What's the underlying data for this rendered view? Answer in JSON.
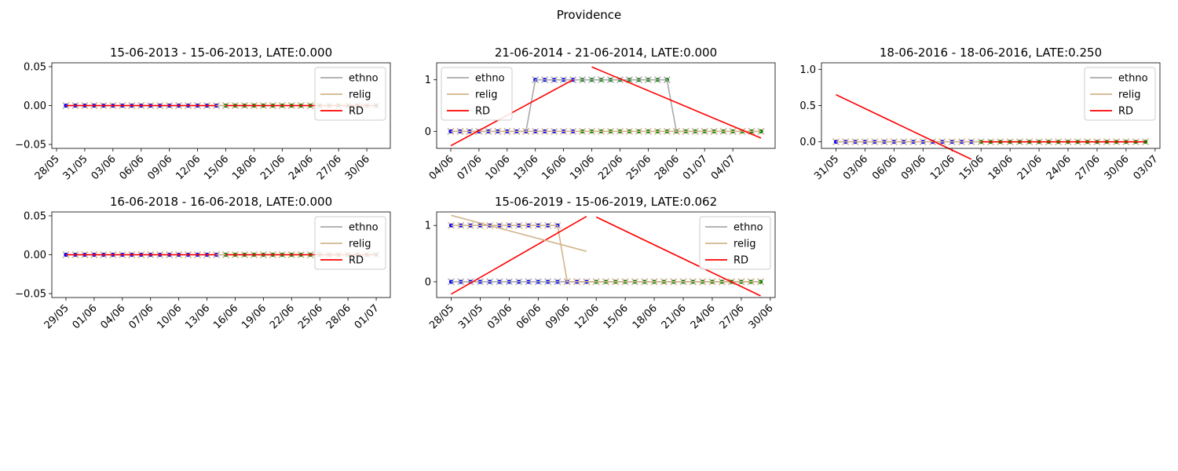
{
  "figure": {
    "suptitle": "Providence"
  },
  "legend_labels": [
    "ethno",
    "relig",
    "RD"
  ],
  "colors": {
    "ethno": "#a9a9a9",
    "relig": "#d2b48c",
    "rd": "#ff0000",
    "left_dots": "#0000ff",
    "right_dots": "#008000"
  },
  "chart_data": [
    {
      "type": "scatter",
      "title": "15-06-2013 - 15-06-2013, LATE:0.000",
      "x_ticks": [
        "28/05",
        "31/05",
        "03/06",
        "06/06",
        "09/06",
        "12/06",
        "15/06",
        "18/06",
        "21/06",
        "24/06",
        "27/06",
        "30/06"
      ],
      "y_ticks": [
        "0.05",
        "0.00",
        "−0.05"
      ],
      "ylim": [
        -0.055,
        0.055
      ],
      "legend": "upper right",
      "x_dates": [
        "2013-05-29",
        "2013-07-01"
      ],
      "series": [
        {
          "name": "ethno",
          "points": [
            [
              "2013-05-29",
              0
            ],
            [
              "2013-07-01",
              0
            ]
          ]
        },
        {
          "name": "relig",
          "points": [
            [
              "2013-05-29",
              0
            ],
            [
              "2013-07-01",
              0
            ]
          ]
        },
        {
          "name": "RD",
          "segments": [
            [
              [
                "2013-05-29",
                0
              ],
              [
                "2013-06-14",
                0
              ]
            ],
            [
              [
                "2013-06-15",
                0
              ],
              [
                "2013-07-01",
                0
              ]
            ]
          ]
        }
      ]
    },
    {
      "type": "scatter",
      "title": "21-06-2014 - 21-06-2014, LATE:0.000",
      "x_ticks": [
        "04/06",
        "07/06",
        "10/06",
        "13/06",
        "16/06",
        "19/06",
        "22/06",
        "25/06",
        "28/06",
        "01/07",
        "04/07"
      ],
      "y_ticks": [
        "1",
        "0"
      ],
      "ylim": [
        -0.33,
        1.33
      ],
      "legend": "upper left",
      "x_dates": [
        "2014-06-04",
        "2014-07-07"
      ],
      "series": [
        {
          "name": "ethno",
          "points": [
            [
              "2014-06-04",
              0
            ],
            [
              "2014-06-12",
              0
            ],
            [
              "2014-06-13",
              1
            ],
            [
              "2014-06-17",
              1
            ],
            [
              "2014-06-19",
              1
            ],
            [
              "2014-06-27",
              1
            ],
            [
              "2014-06-28",
              0
            ],
            [
              "2014-07-07",
              0
            ]
          ]
        },
        {
          "name": "relig",
          "points": [
            [
              "2014-06-04",
              0
            ],
            [
              "2014-07-07",
              0
            ]
          ]
        },
        {
          "name": "RD",
          "segments": [
            [
              [
                "2014-06-04",
                -0.28
              ],
              [
                "2014-06-17",
                1.0
              ]
            ],
            [
              [
                "2014-06-19",
                1.25
              ],
              [
                "2014-07-07",
                -0.13
              ]
            ]
          ]
        }
      ]
    },
    {
      "type": "scatter",
      "title": "18-06-2016 - 18-06-2016, LATE:0.250",
      "x_ticks": [
        "31/05",
        "03/06",
        "06/06",
        "09/06",
        "12/06",
        "15/06",
        "18/06",
        "21/06",
        "24/06",
        "27/06",
        "30/06",
        "03/07"
      ],
      "y_ticks": [
        "1.0",
        "0.5",
        "0.0"
      ],
      "ylim": [
        -0.09,
        1.09
      ],
      "legend": "upper right",
      "x_dates": [
        "2016-05-31",
        "2016-07-02"
      ],
      "series": [
        {
          "name": "ethno",
          "points": [
            [
              "2016-05-31",
              0
            ],
            [
              "2016-07-02",
              0
            ]
          ]
        },
        {
          "name": "relig",
          "points": [
            [
              "2016-05-31",
              0
            ],
            [
              "2016-07-02",
              0
            ]
          ]
        },
        {
          "name": "RD",
          "segments": [
            [
              [
                "2016-05-31",
                0.65
              ],
              [
                "2016-06-14",
                -0.24
              ]
            ],
            [
              [
                "2016-06-15",
                0
              ],
              [
                "2016-07-02",
                0
              ]
            ]
          ]
        }
      ]
    },
    {
      "type": "scatter",
      "title": "16-06-2018 - 16-06-2018, LATE:0.000",
      "x_ticks": [
        "29/05",
        "01/06",
        "04/06",
        "07/06",
        "10/06",
        "13/06",
        "16/06",
        "19/06",
        "22/06",
        "25/06",
        "28/06",
        "01/07"
      ],
      "y_ticks": [
        "0.05",
        "0.00",
        "−0.05"
      ],
      "ylim": [
        -0.055,
        0.055
      ],
      "legend": "upper right",
      "x_dates": [
        "2018-05-29",
        "2018-07-01"
      ],
      "series": [
        {
          "name": "ethno",
          "points": [
            [
              "2018-05-29",
              0
            ],
            [
              "2018-07-01",
              0
            ]
          ]
        },
        {
          "name": "relig",
          "points": [
            [
              "2018-05-29",
              0
            ],
            [
              "2018-07-01",
              0
            ]
          ]
        },
        {
          "name": "RD",
          "segments": [
            [
              [
                "2018-05-29",
                0
              ],
              [
                "2018-06-14",
                0
              ]
            ],
            [
              [
                "2018-06-15",
                0
              ],
              [
                "2018-07-01",
                0
              ]
            ]
          ]
        }
      ]
    },
    {
      "type": "scatter",
      "title": "15-06-2019 - 15-06-2019, LATE:0.062",
      "x_ticks": [
        "28/05",
        "31/05",
        "03/06",
        "06/06",
        "09/06",
        "12/06",
        "15/06",
        "18/06",
        "21/06",
        "24/06",
        "27/06",
        "30/06"
      ],
      "y_ticks": [
        "1",
        "0"
      ],
      "ylim": [
        -0.28,
        1.24
      ],
      "legend": "upper right",
      "x_dates": [
        "2019-05-28",
        "2019-06-29"
      ],
      "series": [
        {
          "name": "ethno",
          "points": [
            [
              "2019-05-28",
              0
            ],
            [
              "2019-06-29",
              0
            ]
          ]
        },
        {
          "name": "relig",
          "points": [
            [
              "2019-05-28",
              1
            ],
            [
              "2019-06-08",
              1
            ],
            [
              "2019-06-09",
              0
            ],
            [
              "2019-06-29",
              0
            ]
          ]
        },
        {
          "name": "RD",
          "segments": [
            [
              [
                "2019-05-28",
                -0.22
              ],
              [
                "2019-06-11",
                1.16
              ]
            ],
            [
              [
                "2019-06-12",
                1.15
              ],
              [
                "2019-06-29",
                -0.25
              ]
            ]
          ]
        },
        {
          "name": "relig-trend",
          "segments": [
            [
              [
                "2019-05-28",
                1.18
              ],
              [
                "2019-06-11",
                0.54
              ]
            ]
          ]
        }
      ]
    }
  ]
}
